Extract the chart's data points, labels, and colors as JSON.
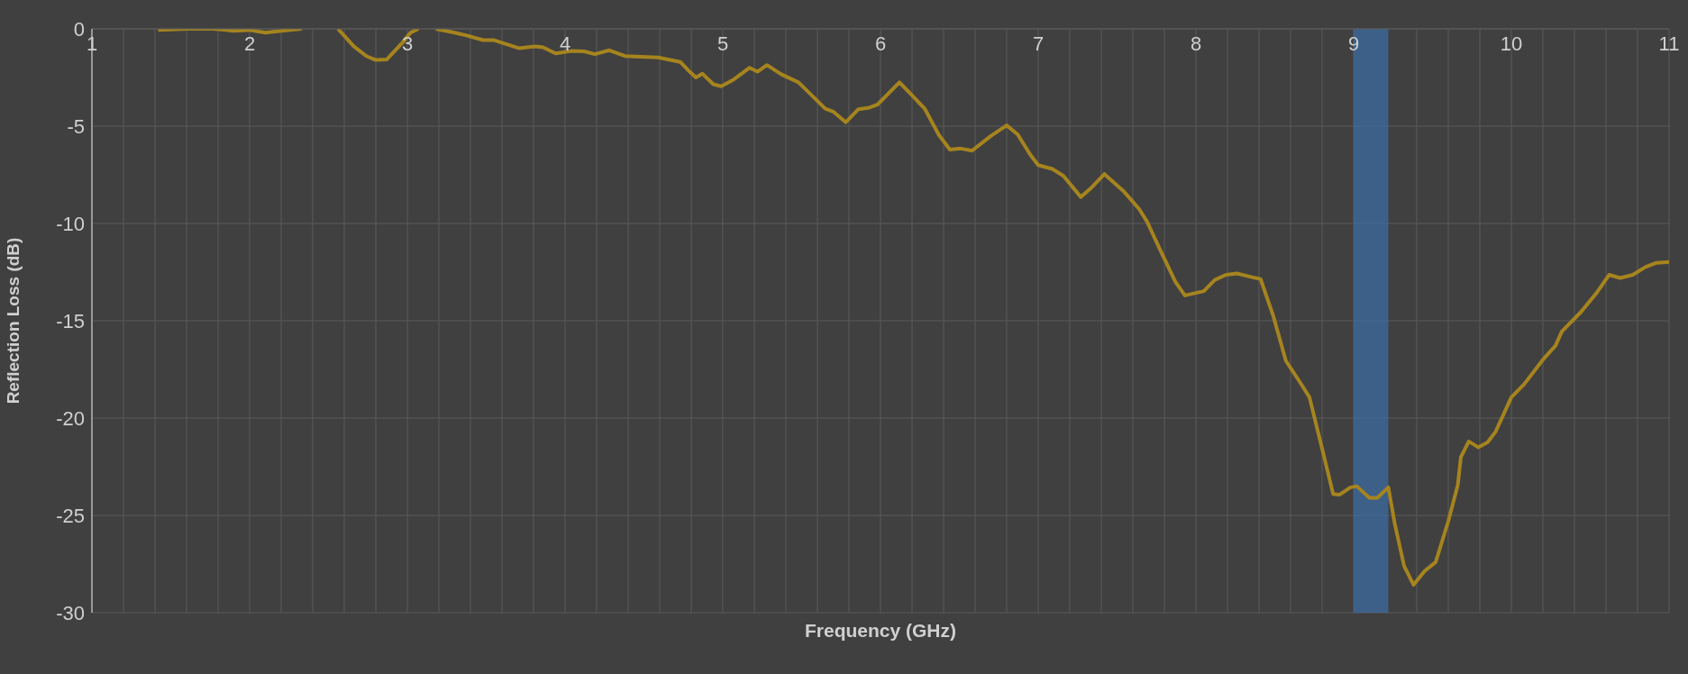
{
  "chart_data": {
    "type": "line",
    "xlabel": "Frequency (GHz)",
    "ylabel": "Reflection Loss (dB)",
    "xlim": [
      1,
      11
    ],
    "ylim": [
      -30,
      0
    ],
    "xticks": [
      1,
      {
        "value": 1.2,
        "label": null
      },
      {
        "value": 1.4,
        "label": null
      },
      {
        "value": 1.6,
        "label": null
      },
      {
        "value": 1.8,
        "label": null
      },
      2,
      {
        "value": 2.2,
        "label": null
      },
      {
        "value": 2.4,
        "label": null
      },
      {
        "value": 2.6,
        "label": null
      },
      {
        "value": 2.8,
        "label": null
      },
      3,
      {
        "value": 3.2,
        "label": null
      },
      {
        "value": 3.4,
        "label": null
      },
      {
        "value": 3.6,
        "label": null
      },
      {
        "value": 3.8,
        "label": null
      },
      4,
      {
        "value": 4.2,
        "label": null
      },
      {
        "value": 4.4,
        "label": null
      },
      {
        "value": 4.6,
        "label": null
      },
      {
        "value": 4.8,
        "label": null
      },
      5,
      {
        "value": 5.2,
        "label": null
      },
      {
        "value": 5.4,
        "label": null
      },
      {
        "value": 5.6,
        "label": null
      },
      {
        "value": 5.8,
        "label": null
      },
      6,
      {
        "value": 6.2,
        "label": null
      },
      {
        "value": 6.4,
        "label": null
      },
      {
        "value": 6.6,
        "label": null
      },
      {
        "value": 6.8,
        "label": null
      },
      7,
      {
        "value": 7.2,
        "label": null
      },
      {
        "value": 7.4,
        "label": null
      },
      {
        "value": 7.6,
        "label": null
      },
      {
        "value": 7.8,
        "label": null
      },
      8,
      {
        "value": 8.2,
        "label": null
      },
      {
        "value": 8.4,
        "label": null
      },
      {
        "value": 8.6,
        "label": null
      },
      {
        "value": 8.8,
        "label": null
      },
      9,
      {
        "value": 9.4,
        "label": null
      },
      {
        "value": 9.6,
        "label": null
      },
      {
        "value": 9.8,
        "label": null
      },
      10,
      {
        "value": 10.2,
        "label": null
      },
      {
        "value": 10.4,
        "label": null
      },
      {
        "value": 10.6,
        "label": null
      },
      {
        "value": 10.8,
        "label": null
      },
      11
    ],
    "yticks": [
      0,
      -5,
      -10,
      -15,
      -20,
      -25,
      -30
    ],
    "grid": true,
    "marker": "none",
    "line_style": "solid",
    "bands": [
      {
        "axis": "x",
        "from": 9,
        "to": 9.22,
        "color": "#3a6ea5"
      }
    ],
    "series": [
      {
        "color": "#a6841e",
        "x": [
          1.42,
          1.61,
          1.77,
          1.9,
          2.0,
          2.1,
          2.2,
          2.33,
          2.45,
          2.56,
          2.66,
          2.74,
          2.8,
          2.87,
          2.97,
          3.02,
          3.07,
          3.12,
          3.18,
          3.3,
          3.37,
          3.48,
          3.55,
          3.71,
          3.81,
          3.86,
          3.94,
          4.04,
          4.12,
          4.19,
          4.28,
          4.38,
          4.59,
          4.73,
          4.79,
          4.83,
          4.87,
          4.94,
          4.99,
          5.07,
          5.17,
          5.22,
          5.28,
          5.37,
          5.48,
          5.65,
          5.7,
          5.78,
          5.86,
          5.93,
          5.98,
          6.12,
          6.21,
          6.28,
          6.37,
          6.44,
          6.51,
          6.58,
          6.7,
          6.8,
          6.87,
          6.95,
          7.0,
          7.09,
          7.16,
          7.27,
          7.33,
          7.42,
          7.54,
          7.64,
          7.69,
          7.77,
          7.87,
          7.93,
          8.05,
          8.12,
          8.19,
          8.26,
          8.35,
          8.41,
          8.49,
          8.57,
          8.66,
          8.72,
          8.81,
          8.87,
          8.91,
          8.98,
          9.02,
          9.1,
          9.15,
          9.22,
          9.26,
          9.32,
          9.38,
          9.45,
          9.52,
          9.6,
          9.66,
          9.68,
          9.73,
          9.79,
          9.85,
          9.9,
          10.0,
          10.08,
          10.2,
          10.28,
          10.32,
          10.44,
          10.54,
          10.62,
          10.69,
          10.77,
          10.85,
          10.92,
          11.0
        ],
        "values": [
          -0.06,
          0,
          0,
          -0.1,
          -0.06,
          -0.2,
          -0.1,
          0,
          null,
          0,
          -0.9,
          -1.4,
          -1.6,
          -1.57,
          -0.7,
          -0.2,
          0,
          null,
          0,
          -0.2,
          -0.33,
          -0.58,
          -0.58,
          -1.0,
          -0.9,
          -0.95,
          -1.26,
          -1.14,
          -1.16,
          -1.3,
          -1.1,
          -1.4,
          -1.47,
          -1.7,
          -2.2,
          -2.5,
          -2.3,
          -2.85,
          -2.95,
          -2.6,
          -2.0,
          -2.2,
          -1.86,
          -2.33,
          -2.75,
          -4.1,
          -4.25,
          -4.8,
          -4.13,
          -4.05,
          -3.9,
          -2.75,
          -3.5,
          -4.1,
          -5.45,
          -6.2,
          -6.15,
          -6.26,
          -5.5,
          -4.96,
          -5.43,
          -6.47,
          -7.0,
          -7.2,
          -7.56,
          -8.64,
          -8.22,
          -7.46,
          -8.33,
          -9.26,
          -9.9,
          -11.3,
          -13.0,
          -13.7,
          -13.48,
          -12.9,
          -12.64,
          -12.57,
          -12.75,
          -12.86,
          -14.74,
          -17.05,
          -18.16,
          -18.93,
          -21.9,
          -23.9,
          -23.94,
          -23.56,
          -23.5,
          -24.1,
          -24.1,
          -23.56,
          -25.4,
          -27.6,
          -28.57,
          -27.86,
          -27.4,
          -25.3,
          -23.45,
          -22.0,
          -21.2,
          -21.5,
          -21.24,
          -20.7,
          -18.93,
          -18.27,
          -17.0,
          -16.28,
          -15.55,
          -14.56,
          -13.57,
          -12.64,
          -12.8,
          -12.64,
          -12.24,
          -12.02,
          -11.98
        ]
      }
    ]
  }
}
